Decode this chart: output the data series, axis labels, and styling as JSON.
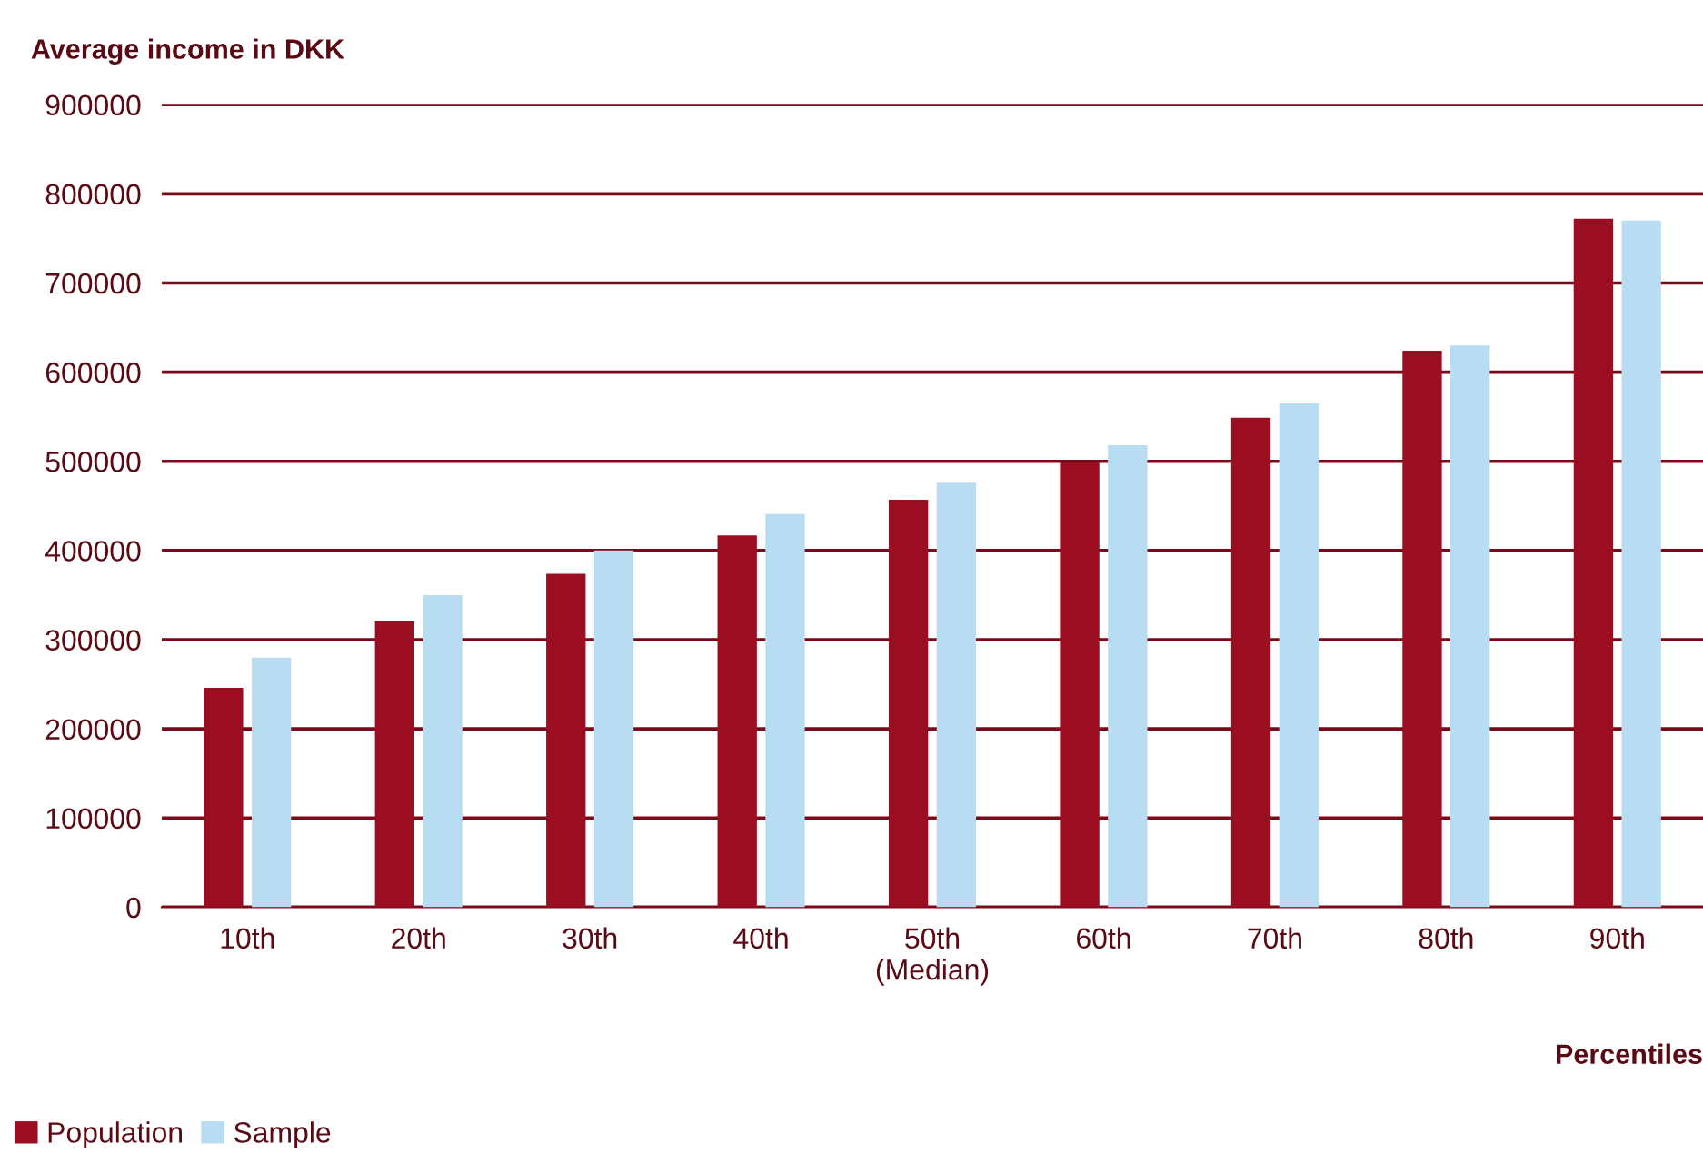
{
  "chart_data": {
    "type": "bar",
    "ylabel": "Average income in DKK",
    "xlabel": "Percentiles",
    "categories": [
      "10th",
      "20th",
      "30th",
      "40th",
      "50th\n(Median)",
      "60th",
      "70th",
      "80th",
      "90th"
    ],
    "series": [
      {
        "name": "Population",
        "color": "#9b0d20",
        "values": [
          246000,
          321000,
          374000,
          417000,
          457000,
          500000,
          549000,
          624000,
          772000
        ]
      },
      {
        "name": "Sample",
        "color": "#b8dcf2",
        "values": [
          280000,
          350000,
          400000,
          441000,
          476000,
          518000,
          565000,
          630000,
          770000
        ]
      }
    ],
    "ylim": [
      0,
      900000
    ],
    "yticks": [
      0,
      100000,
      200000,
      300000,
      400000,
      500000,
      600000,
      700000,
      800000,
      900000
    ],
    "grid": "y",
    "legend": "bottom left"
  }
}
